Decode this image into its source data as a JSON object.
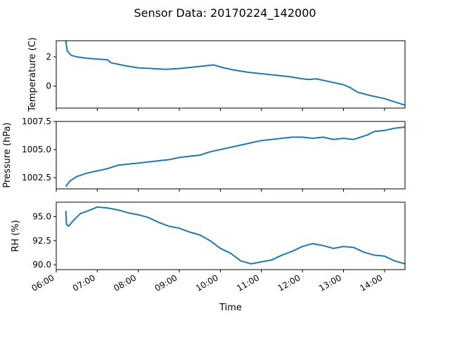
{
  "figure": {
    "title": "Sensor Data: 20170224_142000",
    "xlabel": "Time"
  },
  "colors": {
    "series": "#1f77b4",
    "axes": "#000000",
    "background": "#ffffff"
  },
  "chart_data": [
    {
      "type": "line",
      "ylabel": "Temperature (C)",
      "ylim": [
        -1.5,
        3.1
      ],
      "yticks": [
        {
          "value": 2,
          "label": "2"
        },
        {
          "value": 0,
          "label": "0"
        }
      ],
      "xlim": [
        "06:00",
        "14:30"
      ],
      "show_xticklabels": false,
      "grid": false,
      "series": [
        {
          "points": [
            [
              "06:14",
              3.1
            ],
            [
              "06:16",
              2.4
            ],
            [
              "06:22",
              2.1
            ],
            [
              "06:30",
              2.0
            ],
            [
              "06:45",
              1.9
            ],
            [
              "07:00",
              1.85
            ],
            [
              "07:15",
              1.8
            ],
            [
              "07:20",
              1.6
            ],
            [
              "07:40",
              1.4
            ],
            [
              "08:00",
              1.25
            ],
            [
              "08:20",
              1.2
            ],
            [
              "08:40",
              1.15
            ],
            [
              "09:00",
              1.2
            ],
            [
              "09:20",
              1.3
            ],
            [
              "09:40",
              1.4
            ],
            [
              "09:50",
              1.45
            ],
            [
              "10:05",
              1.25
            ],
            [
              "10:20",
              1.1
            ],
            [
              "10:40",
              0.95
            ],
            [
              "11:00",
              0.85
            ],
            [
              "11:20",
              0.75
            ],
            [
              "11:40",
              0.65
            ],
            [
              "12:00",
              0.5
            ],
            [
              "12:10",
              0.45
            ],
            [
              "12:20",
              0.5
            ],
            [
              "12:40",
              0.3
            ],
            [
              "13:00",
              0.1
            ],
            [
              "13:10",
              -0.1
            ],
            [
              "13:20",
              -0.4
            ],
            [
              "13:40",
              -0.65
            ],
            [
              "14:00",
              -0.85
            ],
            [
              "14:10",
              -1.0
            ],
            [
              "14:20",
              -1.15
            ],
            [
              "14:30",
              -1.3
            ]
          ]
        }
      ]
    },
    {
      "type": "line",
      "ylabel": "Pressure (hPa)",
      "ylim": [
        1001.5,
        1007.5
      ],
      "yticks": [
        {
          "value": 1007.5,
          "label": "1007.5"
        },
        {
          "value": 1005.0,
          "label": "1005.0"
        },
        {
          "value": 1002.5,
          "label": "1002.5"
        }
      ],
      "xlim": [
        "06:00",
        "14:30"
      ],
      "show_xticklabels": false,
      "grid": false,
      "series": [
        {
          "points": [
            [
              "06:14",
              1001.7
            ],
            [
              "06:20",
              1002.2
            ],
            [
              "06:30",
              1002.6
            ],
            [
              "06:45",
              1002.9
            ],
            [
              "07:00",
              1003.1
            ],
            [
              "07:15",
              1003.3
            ],
            [
              "07:30",
              1003.6
            ],
            [
              "07:45",
              1003.7
            ],
            [
              "08:00",
              1003.8
            ],
            [
              "08:15",
              1003.9
            ],
            [
              "08:30",
              1004.0
            ],
            [
              "08:45",
              1004.1
            ],
            [
              "09:00",
              1004.3
            ],
            [
              "09:15",
              1004.4
            ],
            [
              "09:30",
              1004.5
            ],
            [
              "09:45",
              1004.8
            ],
            [
              "10:00",
              1005.0
            ],
            [
              "10:15",
              1005.2
            ],
            [
              "10:30",
              1005.4
            ],
            [
              "10:45",
              1005.6
            ],
            [
              "11:00",
              1005.8
            ],
            [
              "11:15",
              1005.9
            ],
            [
              "11:30",
              1006.0
            ],
            [
              "11:45",
              1006.1
            ],
            [
              "12:00",
              1006.1
            ],
            [
              "12:15",
              1006.0
            ],
            [
              "12:30",
              1006.1
            ],
            [
              "12:45",
              1005.9
            ],
            [
              "13:00",
              1006.0
            ],
            [
              "13:15",
              1005.9
            ],
            [
              "13:25",
              1006.1
            ],
            [
              "13:35",
              1006.3
            ],
            [
              "13:45",
              1006.6
            ],
            [
              "14:00",
              1006.7
            ],
            [
              "14:15",
              1006.9
            ],
            [
              "14:30",
              1007.0
            ]
          ]
        }
      ]
    },
    {
      "type": "line",
      "ylabel": "RH (%)",
      "ylim": [
        89.5,
        96.5
      ],
      "yticks": [
        {
          "value": 95.0,
          "label": "95.0"
        },
        {
          "value": 92.5,
          "label": "92.5"
        },
        {
          "value": 90.0,
          "label": "90.0"
        }
      ],
      "xlim": [
        "06:00",
        "14:30"
      ],
      "xticks": [
        "06:00",
        "07:00",
        "08:00",
        "09:00",
        "10:00",
        "11:00",
        "12:00",
        "13:00",
        "14:00"
      ],
      "show_xticklabels": true,
      "grid": false,
      "series": [
        {
          "points": [
            [
              "06:14",
              95.6
            ],
            [
              "06:15",
              94.2
            ],
            [
              "06:18",
              94.0
            ],
            [
              "06:25",
              94.6
            ],
            [
              "06:35",
              95.3
            ],
            [
              "06:50",
              95.7
            ],
            [
              "07:00",
              96.0
            ],
            [
              "07:15",
              95.9
            ],
            [
              "07:30",
              95.7
            ],
            [
              "07:45",
              95.4
            ],
            [
              "08:00",
              95.2
            ],
            [
              "08:15",
              94.9
            ],
            [
              "08:30",
              94.4
            ],
            [
              "08:45",
              94.0
            ],
            [
              "09:00",
              93.8
            ],
            [
              "09:15",
              93.4
            ],
            [
              "09:30",
              93.1
            ],
            [
              "09:45",
              92.5
            ],
            [
              "10:00",
              91.7
            ],
            [
              "10:15",
              91.2
            ],
            [
              "10:30",
              90.4
            ],
            [
              "10:45",
              90.1
            ],
            [
              "11:00",
              90.3
            ],
            [
              "11:15",
              90.5
            ],
            [
              "11:30",
              91.0
            ],
            [
              "11:45",
              91.4
            ],
            [
              "12:00",
              91.9
            ],
            [
              "12:15",
              92.2
            ],
            [
              "12:30",
              92.0
            ],
            [
              "12:45",
              91.7
            ],
            [
              "13:00",
              91.9
            ],
            [
              "13:15",
              91.8
            ],
            [
              "13:30",
              91.3
            ],
            [
              "13:45",
              91.0
            ],
            [
              "14:00",
              90.9
            ],
            [
              "14:15",
              90.4
            ],
            [
              "14:30",
              90.1
            ]
          ]
        }
      ]
    }
  ]
}
